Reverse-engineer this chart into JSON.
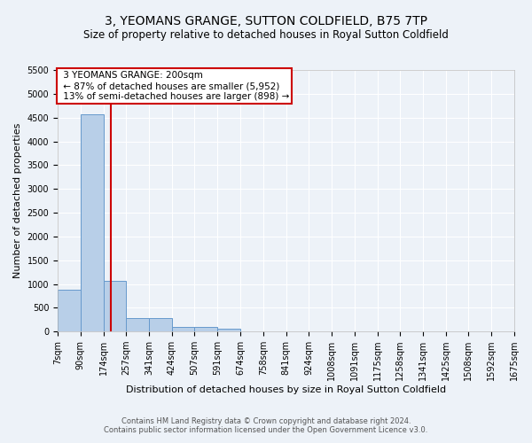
{
  "title": "3, YEOMANS GRANGE, SUTTON COLDFIELD, B75 7TP",
  "subtitle": "Size of property relative to detached houses in Royal Sutton Coldfield",
  "xlabel": "Distribution of detached houses by size in Royal Sutton Coldfield",
  "ylabel": "Number of detached properties",
  "footer_line1": "Contains HM Land Registry data © Crown copyright and database right 2024.",
  "footer_line2": "Contains public sector information licensed under the Open Government Licence v3.0.",
  "annotation_title": "3 YEOMANS GRANGE: 200sqm",
  "annotation_line1": "← 87% of detached houses are smaller (5,952)",
  "annotation_line2": "13% of semi-detached houses are larger (898) →",
  "property_size": 200,
  "bin_edges": [
    7,
    90,
    174,
    257,
    341,
    424,
    507,
    591,
    674,
    758,
    841,
    924,
    1008,
    1091,
    1175,
    1258,
    1341,
    1425,
    1508,
    1592,
    1675
  ],
  "bar_heights": [
    880,
    4560,
    1060,
    290,
    290,
    90,
    90,
    55,
    0,
    0,
    0,
    0,
    0,
    0,
    0,
    0,
    0,
    0,
    0,
    0
  ],
  "bar_color": "#b8cfe8",
  "bar_edge_color": "#6699cc",
  "vline_color": "#cc0000",
  "vline_x": 200,
  "ylim": [
    0,
    5500
  ],
  "yticks": [
    0,
    500,
    1000,
    1500,
    2000,
    2500,
    3000,
    3500,
    4000,
    4500,
    5000,
    5500
  ],
  "background_color": "#edf2f8",
  "grid_color": "#ffffff",
  "title_fontsize": 10,
  "subtitle_fontsize": 8.5,
  "axis_label_fontsize": 8,
  "tick_fontsize": 7,
  "annotation_fontsize": 7.5,
  "footer_fontsize": 6
}
